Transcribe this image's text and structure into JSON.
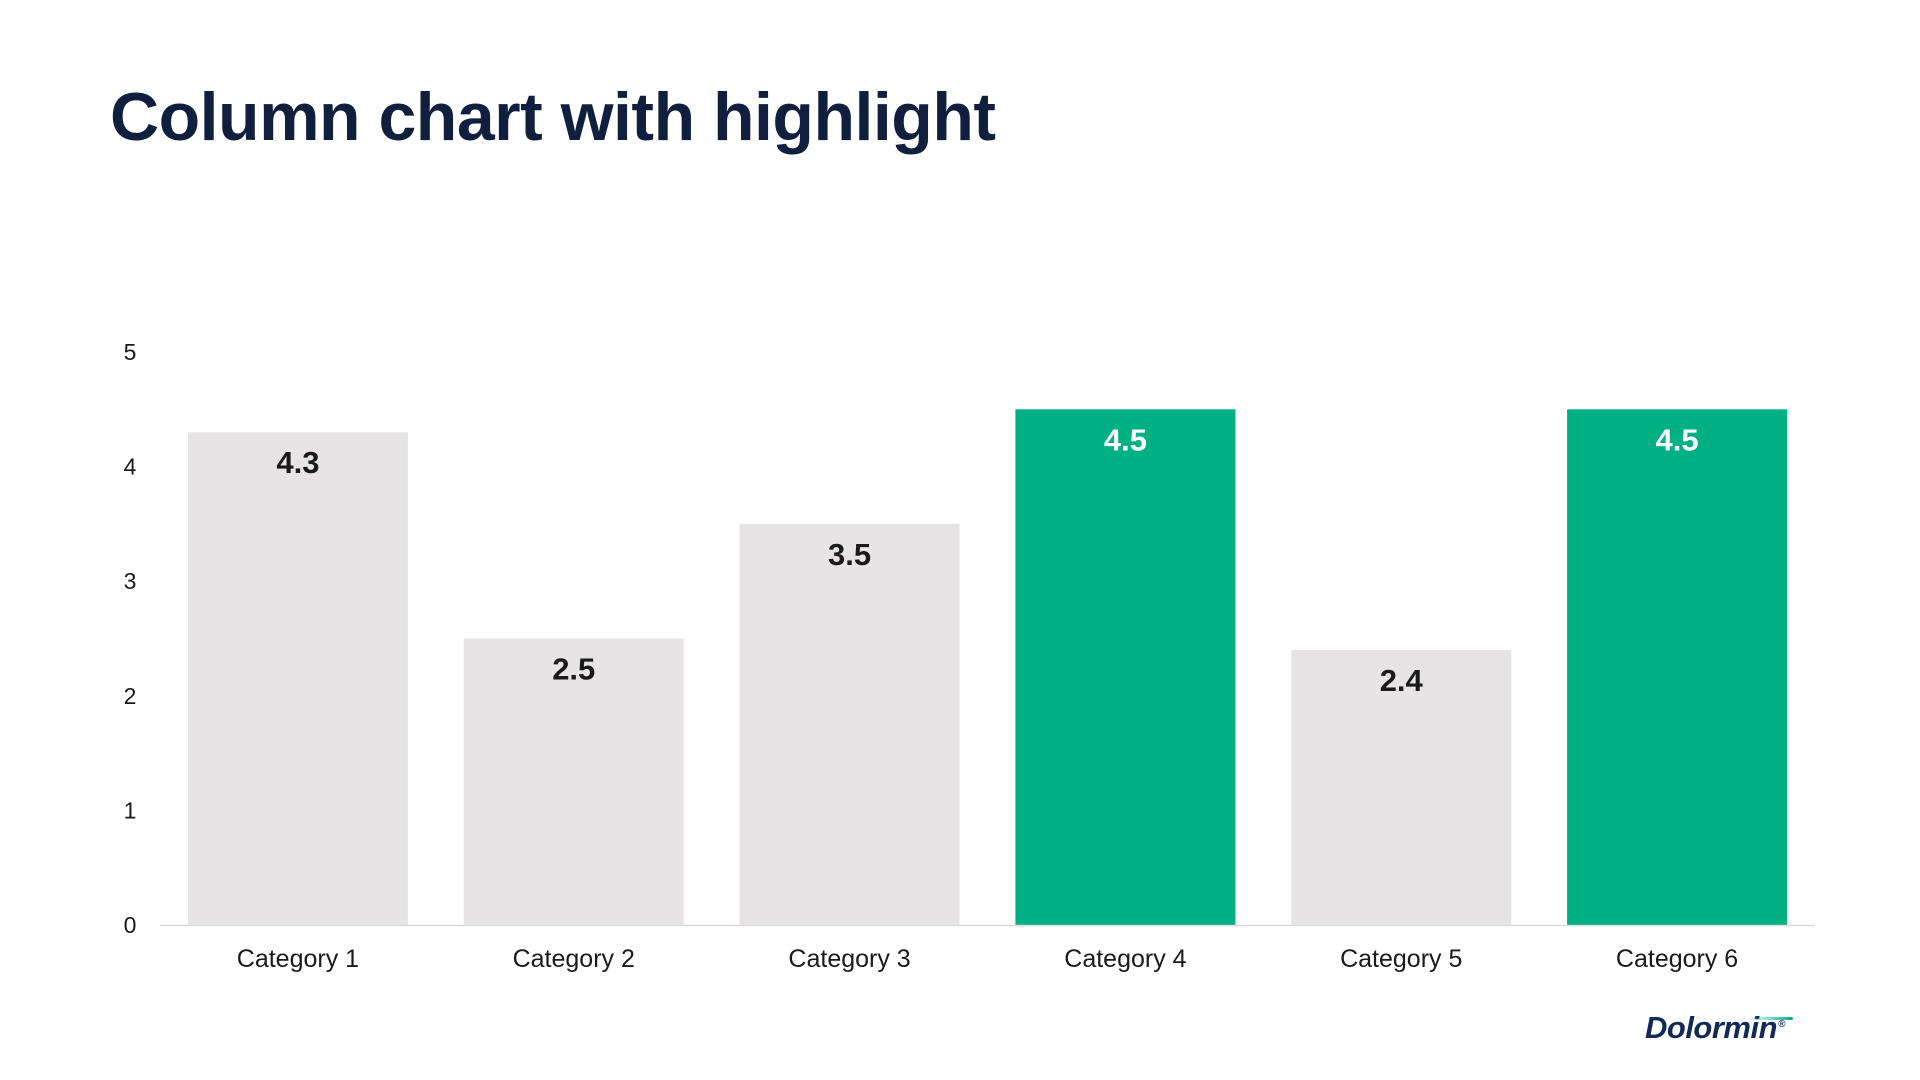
{
  "title": "Column chart with highlight",
  "logo_text": "Dolormin",
  "colors": {
    "title": "#0f1f3d",
    "bar_default": "#e6e4e5",
    "bar_highlight": "#00b085",
    "label_default": "#1a1a1a",
    "label_highlight": "#ffffff",
    "axis_line": "#d9d9d9"
  },
  "chart_data": {
    "type": "bar",
    "title": "Column chart with highlight",
    "xlabel": "",
    "ylabel": "",
    "categories": [
      "Category 1",
      "Category 2",
      "Category 3",
      "Category 4",
      "Category 5",
      "Category 6"
    ],
    "values": [
      4.3,
      2.5,
      3.5,
      4.5,
      2.4,
      4.5
    ],
    "value_labels": [
      "4.3",
      "2.5",
      "3.5",
      "4.5",
      "2.4",
      "4.5"
    ],
    "highlighted": [
      false,
      false,
      false,
      true,
      false,
      true
    ],
    "ylim": [
      0,
      5
    ],
    "yticks": [
      "0",
      "1",
      "2",
      "3",
      "4",
      "5"
    ],
    "grid": false,
    "legend": "none"
  }
}
